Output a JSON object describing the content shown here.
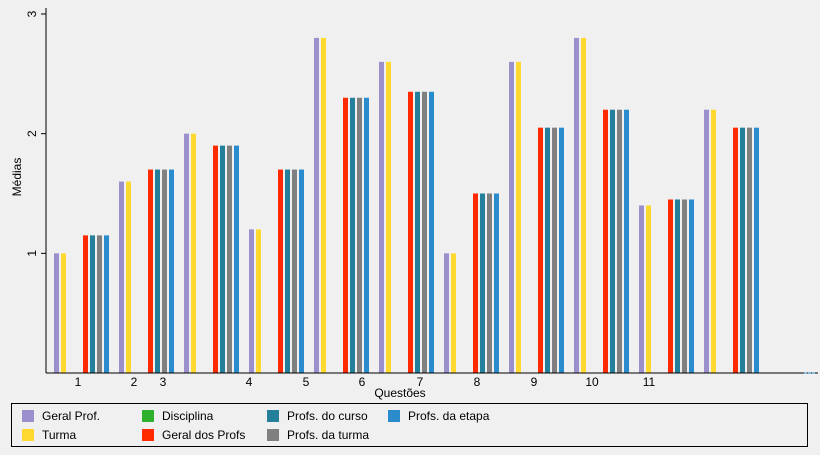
{
  "chart_data": {
    "type": "bar",
    "xlabel": "Questões",
    "ylabel": "Médias",
    "ylim": [
      0,
      3.05
    ],
    "yticks": [
      1,
      2,
      3
    ],
    "x_tick_labels": [
      "1",
      "2",
      "3",
      "4",
      "5",
      "6",
      "7",
      "8",
      "9",
      "10",
      "11"
    ],
    "legend_position": "bottom",
    "groups": [
      {
        "label": "1",
        "series": [
          "Geral Prof.",
          "Turma"
        ],
        "values": [
          1.0,
          1.0
        ]
      },
      {
        "label": "",
        "series": [
          "Geral dos Profs",
          "Profs. do curso",
          "Profs. da turma",
          "Profs. da etapa"
        ],
        "values": [
          1.15,
          1.15,
          1.15,
          1.15
        ]
      },
      {
        "label": "2",
        "series": [
          "Geral Prof.",
          "Turma"
        ],
        "values": [
          1.6,
          1.6
        ]
      },
      {
        "label": "",
        "series": [
          "Geral dos Profs",
          "Profs. do curso",
          "Profs. da turma",
          "Profs. da etapa"
        ],
        "values": [
          1.7,
          1.7,
          1.7,
          1.7
        ]
      },
      {
        "label": "3",
        "series": [
          "Geral Prof.",
          "Turma"
        ],
        "values": [
          2.0,
          2.0
        ]
      },
      {
        "label": "",
        "series": [
          "Geral dos Profs",
          "Profs. do curso",
          "Profs. da turma",
          "Profs. da etapa"
        ],
        "values": [
          1.9,
          1.9,
          1.9,
          1.9
        ]
      },
      {
        "label": "4",
        "series": [
          "Geral Prof.",
          "Turma"
        ],
        "values": [
          1.2,
          1.2
        ]
      },
      {
        "label": "",
        "series": [
          "Geral dos Profs",
          "Profs. do curso",
          "Profs. da turma",
          "Profs. da etapa"
        ],
        "values": [
          1.7,
          1.7,
          1.7,
          1.7
        ]
      },
      {
        "label": "5",
        "series": [
          "Geral Prof.",
          "Turma"
        ],
        "values": [
          2.8,
          2.8
        ]
      },
      {
        "label": "",
        "series": [
          "Geral dos Profs",
          "Profs. do curso",
          "Profs. da turma",
          "Profs. da etapa"
        ],
        "values": [
          2.3,
          2.3,
          2.3,
          2.3
        ]
      },
      {
        "label": "6",
        "series": [
          "Geral Prof.",
          "Turma"
        ],
        "values": [
          2.6,
          2.6
        ]
      },
      {
        "label": "",
        "series": [
          "Geral dos Profs",
          "Profs. do curso",
          "Profs. da turma",
          "Profs. da etapa"
        ],
        "values": [
          2.35,
          2.35,
          2.35,
          2.35
        ]
      },
      {
        "label": "7",
        "series": [
          "Geral Prof.",
          "Turma"
        ],
        "values": [
          1.0,
          1.0
        ]
      },
      {
        "label": "",
        "series": [
          "Geral dos Profs",
          "Profs. do curso",
          "Profs. da turma",
          "Profs. da etapa"
        ],
        "values": [
          1.5,
          1.5,
          1.5,
          1.5
        ]
      },
      {
        "label": "8",
        "series": [
          "Geral Prof.",
          "Turma"
        ],
        "values": [
          2.6,
          2.6
        ]
      },
      {
        "label": "",
        "series": [
          "Geral dos Profs",
          "Profs. do curso",
          "Profs. da turma",
          "Profs. da etapa"
        ],
        "values": [
          2.05,
          2.05,
          2.05,
          2.05
        ]
      },
      {
        "label": "9",
        "series": [
          "Geral Prof.",
          "Turma"
        ],
        "values": [
          2.8,
          2.8
        ]
      },
      {
        "label": "",
        "series": [
          "Geral dos Profs",
          "Profs. do curso",
          "Profs. da turma",
          "Profs. da etapa"
        ],
        "values": [
          2.2,
          2.2,
          2.2,
          2.2
        ]
      },
      {
        "label": "10",
        "series": [
          "Geral Prof.",
          "Turma"
        ],
        "values": [
          1.4,
          1.4
        ]
      },
      {
        "label": "",
        "series": [
          "Geral dos Profs",
          "Profs. do curso",
          "Profs. da turma",
          "Profs. da etapa"
        ],
        "values": [
          1.45,
          1.45,
          1.45,
          1.45
        ]
      },
      {
        "label": "11",
        "series": [
          "Geral Prof.",
          "Turma"
        ],
        "values": [
          2.2,
          2.2
        ]
      },
      {
        "label": "",
        "series": [
          "Geral dos Profs",
          "Profs. do curso",
          "Profs. da turma",
          "Profs. da etapa"
        ],
        "values": [
          2.05,
          2.05,
          2.05,
          2.05
        ]
      }
    ],
    "legend": [
      {
        "name": "Geral Prof.",
        "color": "#9b8fcc"
      },
      {
        "name": "Turma",
        "color": "#ffd930"
      },
      {
        "name": "Disciplina",
        "color": "#2db02d"
      },
      {
        "name": "Geral dos Profs",
        "color": "#ff2a00"
      },
      {
        "name": "Profs. do curso",
        "color": "#24809a"
      },
      {
        "name": "Profs. da turma",
        "color": "#808080"
      },
      {
        "name": "Profs. da etapa",
        "color": "#2a8ccc"
      }
    ]
  }
}
